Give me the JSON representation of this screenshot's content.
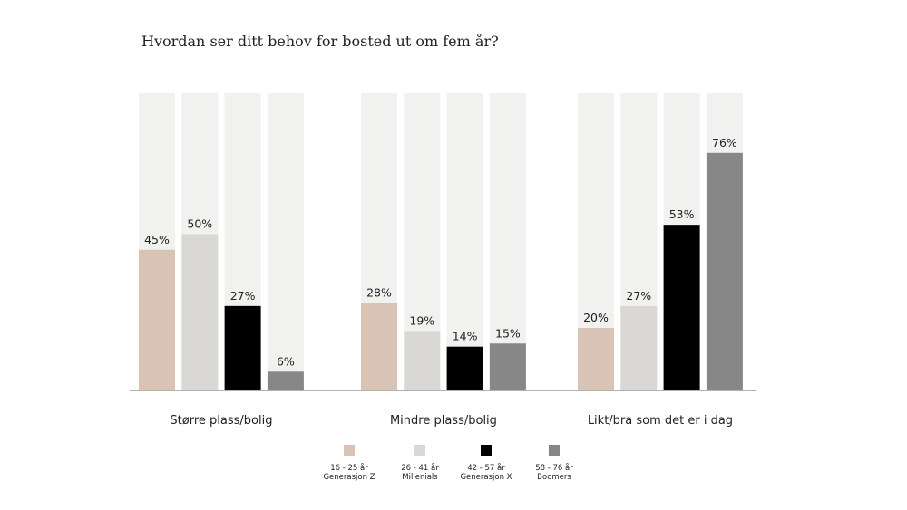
{
  "chart_data": {
    "type": "bar",
    "title": "Hvordan ser ditt behov for bosted ut om fem år?",
    "xlabel": "",
    "ylabel": "",
    "ylim": [
      0,
      100
    ],
    "value_format": "percent",
    "grid": false,
    "legend_placement": "bottom",
    "categories": [
      "Større plass/bolig",
      "Mindre plass/bolig",
      "Likt/bra som det er i dag"
    ],
    "series": [
      {
        "name": "16 - 25 år Generasjon Z",
        "name_lines": [
          "16 - 25 år",
          "Generasjon Z"
        ],
        "color": "#d9c3b5",
        "values": [
          45,
          28,
          20
        ]
      },
      {
        "name": "26 - 41 år Millenials",
        "name_lines": [
          "26 - 41 år",
          "Millenials"
        ],
        "color": "#d9d8d5",
        "values": [
          50,
          19,
          27
        ]
      },
      {
        "name": "42 - 57 år Generasjon X",
        "name_lines": [
          "42 - 57 år",
          "Generasjon X"
        ],
        "color": "#000000",
        "values": [
          27,
          14,
          53
        ]
      },
      {
        "name": "58 - 76 år Boomers",
        "name_lines": [
          "58 - 76 år",
          "Boomers"
        ],
        "color": "#878787",
        "values": [
          6,
          15,
          76
        ]
      }
    ],
    "background_bar_color": "#f1f1f0"
  }
}
